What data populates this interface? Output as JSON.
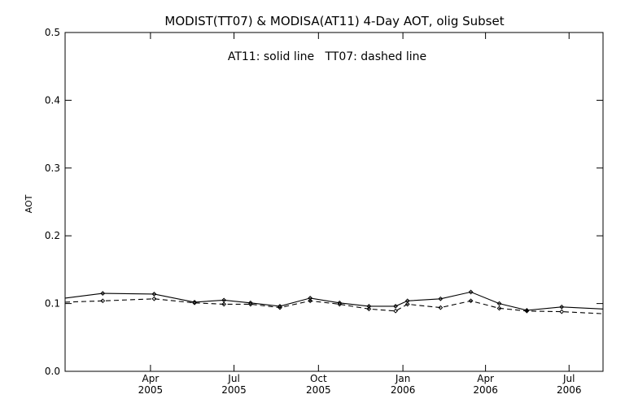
{
  "chart_data": {
    "type": "line",
    "title": "MODIST(TT07) & MODISA(AT11) 4-Day AOT, olig Subset",
    "annotation": "AT11: solid line   TT07: dashed line",
    "xlabel": "",
    "ylabel": "AOT",
    "xlim": [
      "2004-12-29",
      "2006-08-07"
    ],
    "ylim": [
      0.0,
      0.5
    ],
    "yticks": [
      "0.0",
      "0.1",
      "0.2",
      "0.3",
      "0.4",
      "0.5"
    ],
    "xticks": [
      {
        "date": "2005-04-01",
        "month": "Apr",
        "year": "2005"
      },
      {
        "date": "2005-07-01",
        "month": "Jul",
        "year": "2005"
      },
      {
        "date": "2005-10-01",
        "month": "Oct",
        "year": "2005"
      },
      {
        "date": "2006-01-01",
        "month": "Jan",
        "year": "2006"
      },
      {
        "date": "2006-04-01",
        "month": "Apr",
        "year": "2006"
      },
      {
        "date": "2006-07-01",
        "month": "Jul",
        "year": "2006"
      }
    ],
    "grid": false,
    "legend": "none",
    "series": [
      {
        "name": "AT11",
        "line_style": "solid",
        "x": [
          "2004-12-29",
          "2005-02-08",
          "2005-04-05",
          "2005-05-19",
          "2005-06-20",
          "2005-07-19",
          "2005-08-20",
          "2005-09-22",
          "2005-10-24",
          "2005-11-25",
          "2005-12-24",
          "2006-01-06",
          "2006-02-11",
          "2006-03-16",
          "2006-04-16",
          "2006-05-16",
          "2006-06-23",
          "2006-08-07"
        ],
        "values": [
          0.108,
          0.115,
          0.114,
          0.102,
          0.105,
          0.101,
          0.096,
          0.108,
          0.101,
          0.096,
          0.096,
          0.104,
          0.107,
          0.117,
          0.1,
          0.09,
          0.095,
          0.092
        ]
      },
      {
        "name": "TT07",
        "line_style": "dashed",
        "x": [
          "2004-12-29",
          "2005-02-08",
          "2005-04-05",
          "2005-05-19",
          "2005-06-20",
          "2005-07-19",
          "2005-08-20",
          "2005-09-22",
          "2005-10-24",
          "2005-11-25",
          "2005-12-24",
          "2006-01-06",
          "2006-02-11",
          "2006-03-16",
          "2006-04-16",
          "2006-05-16",
          "2006-06-23",
          "2006-08-07"
        ],
        "values": [
          0.102,
          0.104,
          0.107,
          0.101,
          0.099,
          0.099,
          0.094,
          0.104,
          0.099,
          0.092,
          0.089,
          0.099,
          0.094,
          0.104,
          0.093,
          0.089,
          0.088,
          0.085
        ]
      }
    ]
  }
}
